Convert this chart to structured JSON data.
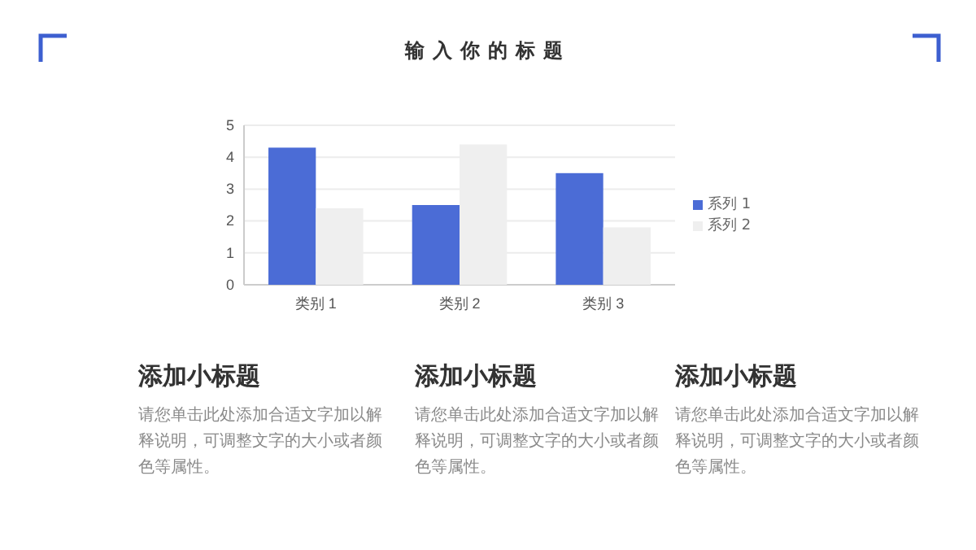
{
  "chart_data": {
    "type": "bar",
    "title": "输入你的标题",
    "categories": [
      "类别 1",
      "类别 2",
      "类别 3"
    ],
    "series": [
      {
        "name": "系列 1",
        "color": "#4b6cd6",
        "values": [
          4.3,
          2.5,
          3.5
        ]
      },
      {
        "name": "系列 2",
        "color": "#efefef",
        "values": [
          2.4,
          4.4,
          1.8
        ]
      }
    ],
    "ylim": [
      0,
      5
    ],
    "yticks": [
      0,
      1,
      2,
      3,
      4,
      5
    ],
    "grid": "y",
    "legend": "right",
    "annotations": [
      "添加小标题",
      "请您单击此处添加合适文字加以解释说明，可调整文字的大小或者颜色等属性。",
      "添加小标题",
      "请您单击此处添加合适文字加以解释说明，可调整文字的大小或者颜色等属性。",
      "添加小标题",
      "请您单击此处添加合适文字加以解释说明，可调整文字的大小或者颜色等属性。"
    ]
  }
}
